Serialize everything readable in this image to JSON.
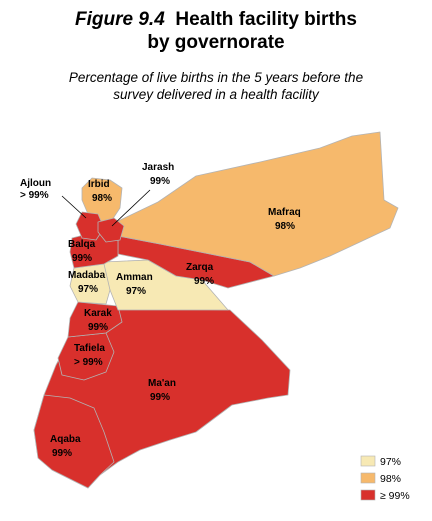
{
  "figure": {
    "number": "Figure 9.4",
    "title_line1": "Health facility births",
    "title_line2": "by governorate",
    "subtitle_line1": "Percentage of live births in the 5 years before the",
    "subtitle_line2": "survey delivered in a health facility"
  },
  "colors": {
    "c97": "#f7e9b4",
    "c98": "#f6b96c",
    "c99": "#d8302c",
    "border": "#b3b3b3"
  },
  "regions": [
    {
      "name": "Ajloun",
      "value": "> 99%",
      "category": "c99"
    },
    {
      "name": "Irbid",
      "value": "98%",
      "category": "c98"
    },
    {
      "name": "Jarash",
      "value": "99%",
      "category": "c99"
    },
    {
      "name": "Mafraq",
      "value": "98%",
      "category": "c98"
    },
    {
      "name": "Balqa",
      "value": "99%",
      "category": "c99"
    },
    {
      "name": "Zarqa",
      "value": "99%",
      "category": "c99"
    },
    {
      "name": "Madaba",
      "value": "97%",
      "category": "c97"
    },
    {
      "name": "Amman",
      "value": "97%",
      "category": "c97"
    },
    {
      "name": "Karak",
      "value": "99%",
      "category": "c99"
    },
    {
      "name": "Tafiela",
      "value": "> 99%",
      "category": "c99"
    },
    {
      "name": "Ma'an",
      "value": "99%",
      "category": "c99"
    },
    {
      "name": "Aqaba",
      "value": "99%",
      "category": "c99"
    }
  ],
  "legend": [
    {
      "label": "97%",
      "category": "c97"
    },
    {
      "label": "98%",
      "category": "c98"
    },
    {
      "label": "≥ 99%",
      "category": "c99"
    }
  ]
}
